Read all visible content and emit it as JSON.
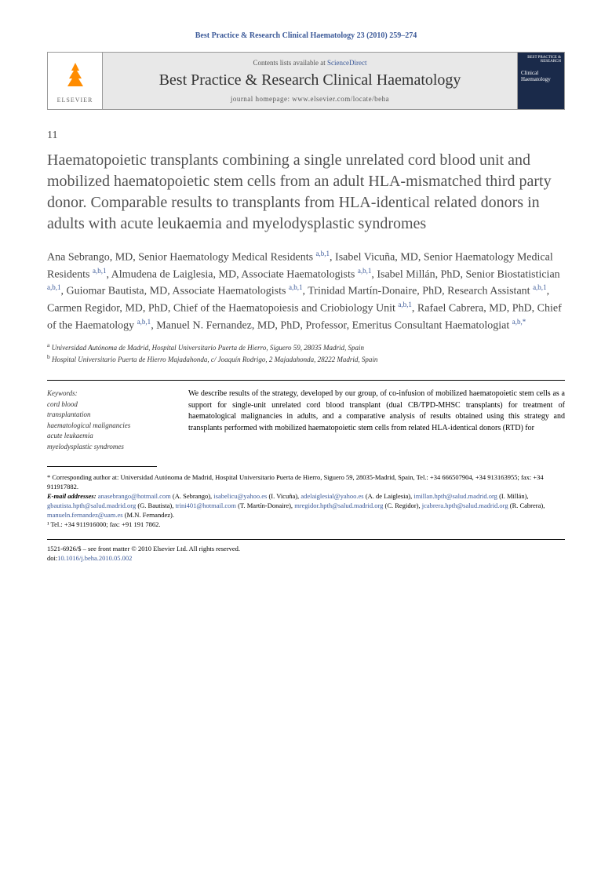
{
  "header": {
    "citation": "Best Practice & Research Clinical Haematology 23 (2010) 259–274"
  },
  "banner": {
    "elsevier": "ELSEVIER",
    "contents_prefix": "Contents lists available at ",
    "contents_link": "ScienceDirect",
    "journal_name": "Best Practice & Research Clinical Haematology",
    "homepage_label": "journal homepage: ",
    "homepage_url": "www.elsevier.com/locate/beha",
    "cover_top": "BEST PRACTICE & RESEARCH",
    "cover_title": "Clinical Haematology"
  },
  "article": {
    "number": "11",
    "title": "Haematopoietic transplants combining a single unrelated cord blood unit and mobilized haematopoietic stem cells from an adult HLA-mismatched third party donor. Comparable results to transplants from HLA-identical related donors in adults with acute leukaemia and myelodysplastic syndromes"
  },
  "authors_html": "Ana Sebrango, MD, Senior Haematology Medical Residents <sup>a,b,1</sup>, Isabel Vicuña, MD, Senior Haematology Medical Residents <sup>a,b,1</sup>, Almudena de Laiglesia, MD, Associate Haematologists <sup>a,b,1</sup>, Isabel Millán, PhD, Senior Biostatistician <sup>a,b,1</sup>, Guiomar Bautista, MD, Associate Haematologists <sup>a,b,1</sup>, Trinidad Martín-Donaire, PhD, Research Assistant <sup>a,b,1</sup>, Carmen Regidor, MD, PhD, Chief of the Haematopoiesis and Criobiology Unit <sup>a,b,1</sup>, Rafael Cabrera, MD, PhD, Chief of the  Haematology <sup>a,b,1</sup>, Manuel N. Fernandez, MD, PhD, Professor, Emeritus Consultant Haematologiat <sup>a,b,*</sup>",
  "affiliations": {
    "a": "Universidad Autónoma de Madrid, Hospital Universitario Puerta de Hierro, Siguero 59, 28035 Madrid, Spain",
    "b": "Hospital Universitario Puerta de Hierro Majadahonda, c/ Joaquín Rodrigo, 2 Majadahonda, 28222 Madrid, Spain"
  },
  "keywords": {
    "title": "Keywords:",
    "items": [
      "cord blood",
      "transplantation",
      "haematological malignancies",
      "acute leukaemia",
      "myelodysplastic syndromes"
    ]
  },
  "abstract": "We describe results of the strategy, developed by our group, of co-infusion of mobilized haematopoietic stem cells as a support for single-unit unrelated cord blood transplant (dual CB/TPD-MHSC transplants) for treatment of haematological malignancies in adults, and a comparative analysis of results obtained using this strategy and transplants performed with mobilized haematopoietic stem cells from related HLA-identical donors (RTD) for",
  "footer": {
    "corresponding": "* Corresponding author at: Universidad Autónoma de Madrid, Hospital Universitario Puerta de Hierro, Siguero 59, 28035-Madrid, Spain, Tel.: +34 666507904, +34 913163955; fax: +34 911917882.",
    "email_label": "E-mail addresses:",
    "emails_html": " <a>anasebrango@hotmail.com</a> (A. Sebrango), <a>isabelicu@yahoo.es</a> (I. Vicuña), <a>adelaiglesial@yahoo.es</a> (A. de Laiglesia), <a>imillan.hpth@salud.madrid.org</a> (I. Millán), <a>gbautista.hpth@salud.madrid.org</a> (G. Bautista), <a>trini401@hotmail.com</a> (T. Martín-Donaire), <a>mregidor.hpth@salud.madrid.org</a> (C. Regidor), <a>jcabrera.hpth@salud.madrid.org</a> (R. Cabrera), <a>manueln.fernandez@uam.es</a> (M.N. Fernandez).",
    "note1": "¹ Tel.: +34 911916000; fax: +91 191 7862."
  },
  "copyright": {
    "line1": "1521-6926/$ – see front matter © 2010 Elsevier Ltd. All rights reserved.",
    "doi_label": "doi:",
    "doi": "10.1016/j.beha.2010.05.002"
  }
}
